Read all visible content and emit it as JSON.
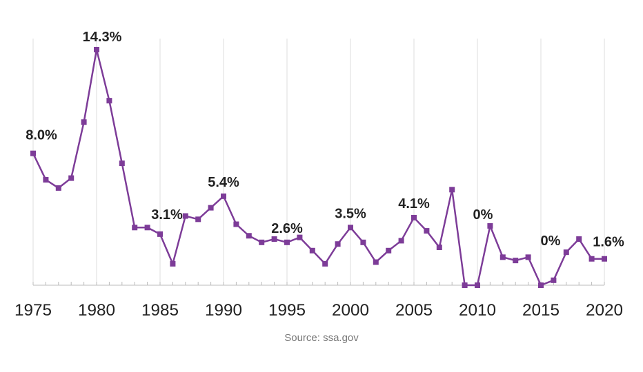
{
  "source": "Source: ssa.gov",
  "colors": {
    "line": "#7d3c98",
    "grid": "#dcdcdc",
    "axis": "#bbbbbb",
    "text": "#222222"
  },
  "chart_data": {
    "type": "line",
    "title": "",
    "xlabel": "",
    "ylabel": "",
    "x": [
      1975,
      1976,
      1977,
      1978,
      1979,
      1980,
      1981,
      1982,
      1983,
      1984,
      1985,
      1986,
      1987,
      1988,
      1989,
      1990,
      1991,
      1992,
      1993,
      1994,
      1995,
      1996,
      1997,
      1998,
      1999,
      2000,
      2001,
      2002,
      2003,
      2004,
      2005,
      2006,
      2007,
      2008,
      2009,
      2010,
      2011,
      2012,
      2013,
      2014,
      2015,
      2016,
      2017,
      2018,
      2019,
      2020
    ],
    "series": [
      {
        "values": [
          8.0,
          6.4,
          5.9,
          6.5,
          9.9,
          14.3,
          11.2,
          7.4,
          3.5,
          3.5,
          3.1,
          1.3,
          4.2,
          4.0,
          4.7,
          5.4,
          3.7,
          3.0,
          2.6,
          2.8,
          2.6,
          2.9,
          2.1,
          1.3,
          2.5,
          3.5,
          2.6,
          1.4,
          2.1,
          2.7,
          4.1,
          3.3,
          2.3,
          5.8,
          0.0,
          0.0,
          3.6,
          1.7,
          1.5,
          1.7,
          0.0,
          0.3,
          2.0,
          2.8,
          1.6,
          1.6
        ]
      }
    ],
    "point_labels": [
      {
        "x": 1975,
        "text": "8.0%"
      },
      {
        "x": 1980,
        "text": "14.3%"
      },
      {
        "x": 1985,
        "text": "3.1%"
      },
      {
        "x": 1990,
        "text": "5.4%"
      },
      {
        "x": 1995,
        "text": "2.6%"
      },
      {
        "x": 2000,
        "text": "3.5%"
      },
      {
        "x": 2005,
        "text": "4.1%"
      },
      {
        "x": 2010,
        "text": "0%"
      },
      {
        "x": 2015,
        "text": "0%"
      },
      {
        "x": 2020,
        "text": "1.6%"
      }
    ],
    "xticks": [
      1975,
      1980,
      1985,
      1990,
      1995,
      2000,
      2005,
      2010,
      2015,
      2020
    ],
    "xlim": [
      1975,
      2020
    ],
    "ylim": [
      0,
      14.3
    ],
    "grid": "vertical lines at labeled years"
  }
}
